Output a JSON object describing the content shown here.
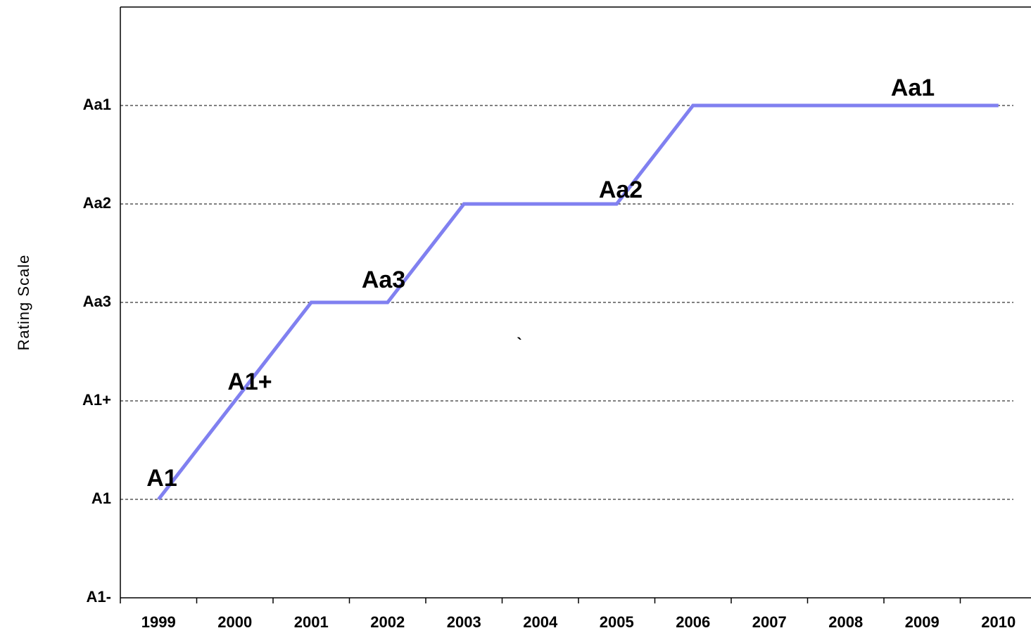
{
  "chart_data": {
    "type": "line",
    "y_label": "Rating Scale",
    "xlim": [
      1998.5,
      2010.5
    ],
    "xticks": [
      1999,
      2000,
      2001,
      2002,
      2003,
      2004,
      2005,
      2006,
      2007,
      2008,
      2009,
      2010
    ],
    "ylim": [
      0,
      6
    ],
    "yticks": [
      {
        "value": 0,
        "label": "A1-"
      },
      {
        "value": 1,
        "label": "A1"
      },
      {
        "value": 2,
        "label": "A1+"
      },
      {
        "value": 3,
        "label": "Aa3"
      },
      {
        "value": 4,
        "label": "Aa2"
      },
      {
        "value": 5,
        "label": "Aa1"
      }
    ],
    "grid": true,
    "series": [
      {
        "color": "#8080f0",
        "x": [
          1999,
          2000,
          2001,
          2002,
          2003,
          2005,
          2006,
          2010
        ],
        "values": [
          1,
          2,
          3,
          3,
          4,
          4,
          5,
          5
        ]
      }
    ],
    "annotations": [
      "A1",
      "A1+",
      "Aa3",
      "Aa2",
      "Aa1",
      "`"
    ]
  }
}
